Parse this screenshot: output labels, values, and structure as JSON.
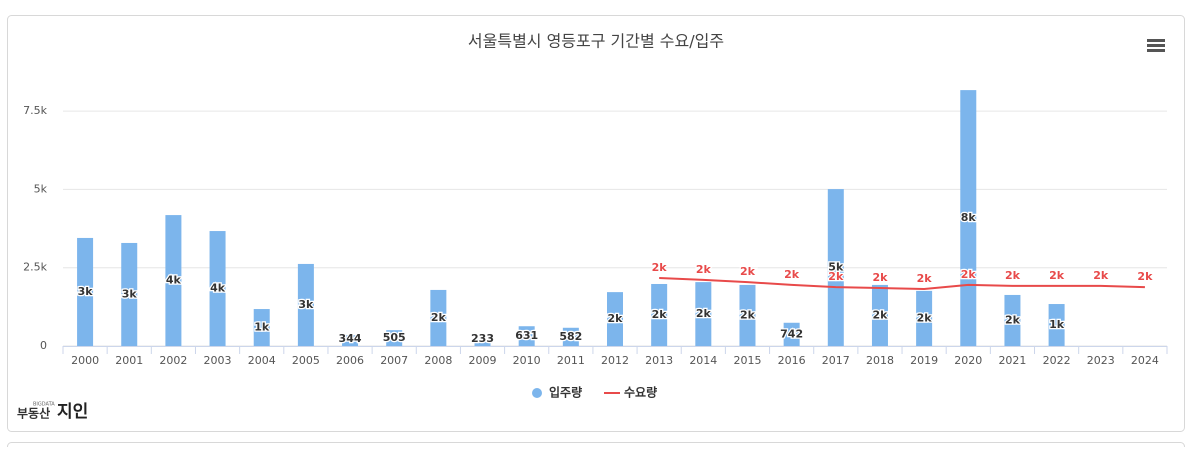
{
  "chart_data": {
    "type": "bar",
    "title": "서울특별시 영등포구 기간별 수요/입주",
    "categories": [
      "2000",
      "2001",
      "2002",
      "2003",
      "2004",
      "2005",
      "2006",
      "2007",
      "2008",
      "2009",
      "2010",
      "2011",
      "2012",
      "2013",
      "2014",
      "2015",
      "2016",
      "2017",
      "2018",
      "2019",
      "2020",
      "2021",
      "2022",
      "2023",
      "2024"
    ],
    "series": [
      {
        "name": "입주량",
        "type": "bar",
        "color": "#7cb5ec",
        "values": [
          3450,
          3290,
          4180,
          3670,
          1180,
          2620,
          344,
          505,
          1790,
          233,
          631,
          582,
          1720,
          1980,
          2040,
          1950,
          742,
          5010,
          1950,
          1760,
          8170,
          1630,
          1340,
          null,
          null
        ],
        "value_labels": [
          "3k",
          "3k",
          "4k",
          "4k",
          "1k",
          "3k",
          "344",
          "505",
          "2k",
          "233",
          "631",
          "582",
          "2k",
          "2k",
          "2k",
          "2k",
          "742",
          "5k",
          "2k",
          "2k",
          "8k",
          "2k",
          "1k",
          null,
          null
        ]
      },
      {
        "name": "수요량",
        "type": "line",
        "color": "#e84a4a",
        "values": [
          null,
          null,
          null,
          null,
          null,
          null,
          null,
          null,
          null,
          null,
          null,
          null,
          null,
          2170,
          2110,
          2040,
          1950,
          1880,
          1850,
          1820,
          1950,
          1920,
          1920,
          1920,
          1880
        ],
        "value_labels": [
          null,
          null,
          null,
          null,
          null,
          null,
          null,
          null,
          null,
          null,
          null,
          null,
          null,
          "2k",
          "2k",
          "2k",
          "2k",
          "2k",
          "2k",
          "2k",
          "2k",
          "2k",
          "2k",
          "2k",
          "2k"
        ]
      }
    ],
    "ylim": [
      0,
      8500
    ],
    "yticks": [
      0,
      {
        "value": 2500,
        "label": "2.5k"
      },
      {
        "value": 5000,
        "label": "5k"
      },
      {
        "value": 7500,
        "label": "7.5k"
      }
    ],
    "grid": true,
    "legend": "bottom",
    "logo": {
      "small": "BIGDATA",
      "main": "부동산",
      "accent": "지인"
    }
  }
}
